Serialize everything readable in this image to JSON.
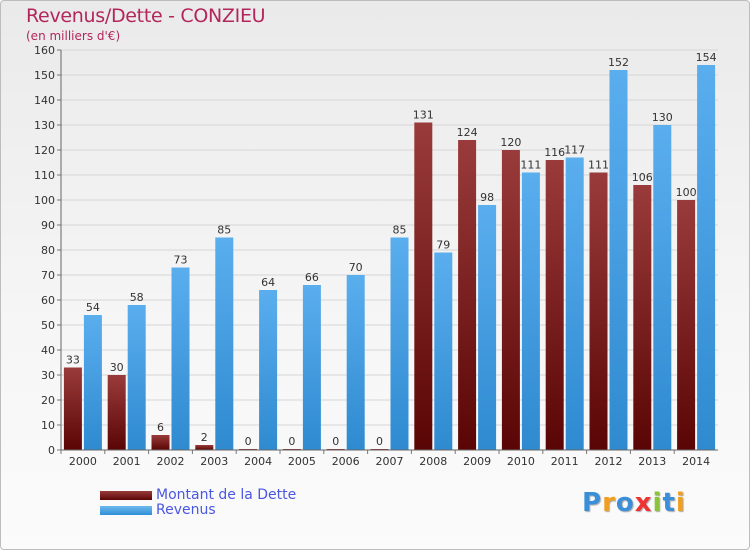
{
  "chart_data": {
    "type": "bar",
    "title": "Revenus/Dette - CONZIEU",
    "subtitle": "(en milliers d'€)",
    "categories": [
      "2000",
      "2001",
      "2002",
      "2003",
      "2004",
      "2005",
      "2006",
      "2007",
      "2008",
      "2009",
      "2010",
      "2011",
      "2012",
      "2013",
      "2014"
    ],
    "series": [
      {
        "name": "Montant de la Dette",
        "values": [
          33,
          30,
          6,
          2,
          0,
          0,
          0,
          0,
          131,
          124,
          120,
          116,
          111,
          106,
          100
        ],
        "color": "#7a1e1e"
      },
      {
        "name": "Revenus",
        "values": [
          54,
          58,
          73,
          85,
          64,
          66,
          70,
          85,
          79,
          98,
          111,
          117,
          152,
          130,
          154
        ],
        "color": "#4aa3e8"
      }
    ],
    "ylim": [
      0,
      160
    ],
    "yticks": [
      0,
      10,
      20,
      30,
      40,
      50,
      60,
      70,
      80,
      90,
      100,
      110,
      120,
      130,
      140,
      150,
      160
    ],
    "grid": true,
    "legend": "bottom-left"
  },
  "logo": {
    "text": "Proxiti"
  }
}
